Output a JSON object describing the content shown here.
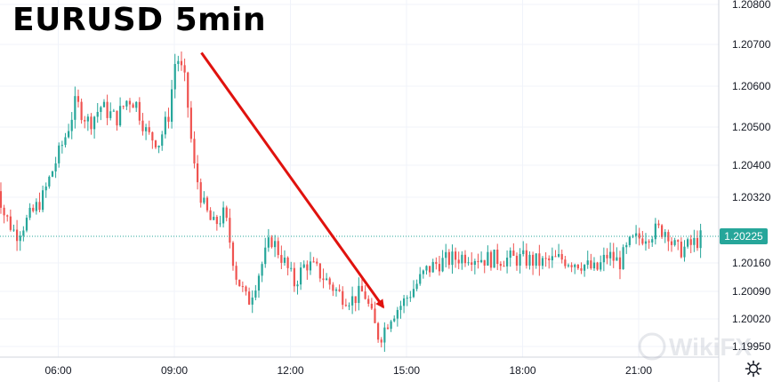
{
  "chart_data": {
    "type": "candlestick",
    "title": "EURUSD 5min",
    "y_ticks": [
      1.208,
      1.207,
      1.206,
      1.205,
      1.204,
      1.2032,
      1.2016,
      1.2009,
      1.2002,
      1.1995
    ],
    "y_tick_labels": [
      "1.20800",
      "1.20700",
      "1.20600",
      "1.20500",
      "1.20400",
      "1.20320",
      "1.20160",
      "1.20090",
      "1.20020",
      "1.19950"
    ],
    "x_tick_labels": [
      "06:00",
      "09:00",
      "12:00",
      "15:00",
      "18:00",
      "21:00"
    ],
    "x_ticks_hours": [
      6,
      9,
      12,
      15,
      18,
      21
    ],
    "x_range_hours": [
      4.3,
      23.6
    ],
    "ylim": [
      1.199,
      1.2083
    ],
    "current_price": 1.20225,
    "current_price_label": "1.20225",
    "colors": {
      "up": "#26a69a",
      "down": "#ef5350",
      "arrow": "#e0120e",
      "axis_text": "#131722",
      "grid": "#f0f3fa"
    },
    "arrow": {
      "from": {
        "hour": 9.7,
        "price": 1.2068
      },
      "to": {
        "hour": 14.4,
        "price": 1.2005
      }
    },
    "grid": true,
    "anchors": [
      [
        4.35,
        1.2038
      ],
      [
        4.6,
        1.2028
      ],
      [
        4.9,
        1.2023
      ],
      [
        5.25,
        1.2027
      ],
      [
        5.6,
        1.2032
      ],
      [
        5.9,
        1.204
      ],
      [
        6.2,
        1.2048
      ],
      [
        6.45,
        1.2056
      ],
      [
        6.8,
        1.2051
      ],
      [
        7.1,
        1.2055
      ],
      [
        7.5,
        1.2052
      ],
      [
        7.8,
        1.2057
      ],
      [
        8.0,
        1.2056
      ],
      [
        8.3,
        1.2048
      ],
      [
        8.6,
        1.2046
      ],
      [
        8.85,
        1.2053
      ],
      [
        9.05,
        1.2068
      ],
      [
        9.3,
        1.206
      ],
      [
        9.5,
        1.204
      ],
      [
        9.75,
        1.203
      ],
      [
        10.0,
        1.2025
      ],
      [
        10.3,
        1.2028
      ],
      [
        10.6,
        1.2013
      ],
      [
        10.9,
        1.2006
      ],
      [
        11.2,
        1.2014
      ],
      [
        11.5,
        1.2022
      ],
      [
        11.8,
        1.2017
      ],
      [
        12.1,
        1.2011
      ],
      [
        12.4,
        1.2016
      ],
      [
        12.7,
        1.2014
      ],
      [
        13.0,
        1.2011
      ],
      [
        13.3,
        1.2008
      ],
      [
        13.6,
        1.2007
      ],
      [
        13.9,
        1.2009
      ],
      [
        14.15,
        1.2001
      ],
      [
        14.3,
        1.1997
      ],
      [
        14.6,
        1.2003
      ],
      [
        14.9,
        1.2006
      ],
      [
        15.2,
        1.201
      ],
      [
        15.5,
        1.2014
      ],
      [
        15.8,
        1.2016
      ],
      [
        16.2,
        1.2017
      ],
      [
        16.6,
        1.2018
      ],
      [
        17.0,
        1.2017
      ],
      [
        17.5,
        1.2017
      ],
      [
        18.0,
        1.2017
      ],
      [
        18.5,
        1.2016
      ],
      [
        19.0,
        1.2017
      ],
      [
        19.5,
        1.2016
      ],
      [
        19.9,
        1.2014
      ],
      [
        20.2,
        1.2018
      ],
      [
        20.5,
        1.2016
      ],
      [
        20.8,
        1.2021
      ],
      [
        21.2,
        1.2023
      ],
      [
        21.5,
        1.2024
      ],
      [
        21.75,
        1.2024
      ],
      [
        21.85,
        1.2021
      ],
      [
        22.0,
        1.2019
      ],
      [
        22.3,
        1.202
      ],
      [
        22.6,
        1.2022
      ]
    ]
  },
  "watermark": "WikiFX"
}
